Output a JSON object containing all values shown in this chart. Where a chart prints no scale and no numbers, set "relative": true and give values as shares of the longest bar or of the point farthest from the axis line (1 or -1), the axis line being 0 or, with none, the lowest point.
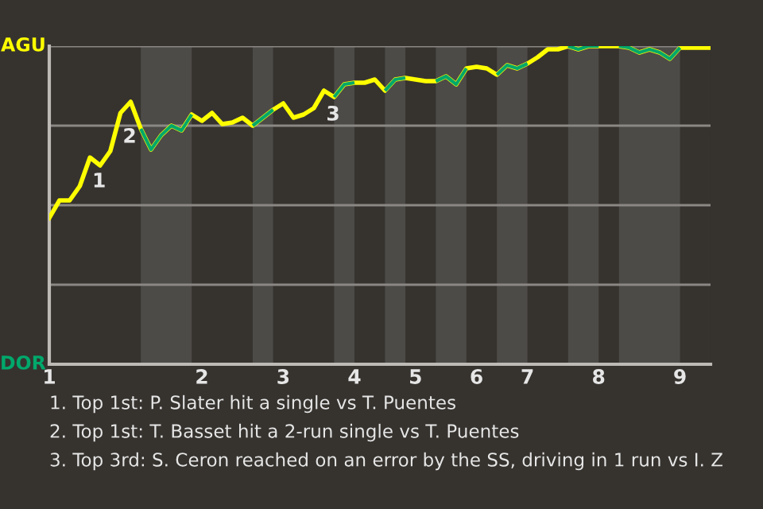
{
  "chart_data": {
    "type": "line",
    "relative": true,
    "categories": [
      "1",
      null,
      null,
      null,
      null,
      null,
      null,
      null,
      null,
      null,
      null,
      null,
      null,
      null,
      null,
      "2",
      null,
      null,
      null,
      null,
      null,
      null,
      null,
      "3",
      null,
      null,
      null,
      null,
      null,
      null,
      "4",
      null,
      null,
      null,
      null,
      null,
      "5",
      null,
      null,
      null,
      null,
      null,
      "6",
      null,
      null,
      null,
      null,
      "7",
      null,
      null,
      null,
      null,
      null,
      null,
      "8",
      null,
      null,
      null,
      null,
      null,
      null,
      null,
      "9",
      null,
      null,
      null
    ],
    "grid": "y",
    "legend": false,
    "marker": "none",
    "line_style": "solid",
    "series": [
      {
        "name": "AGU",
        "color": "#ffff00",
        "values": [
          0.46,
          0.515,
          0.515,
          0.56,
          0.65,
          0.625,
          0.67,
          0.79,
          0.825,
          0.74,
          0.675,
          0.72,
          0.75,
          0.735,
          0.785,
          0.765,
          0.79,
          0.755,
          0.76,
          0.775,
          0.75,
          0.775,
          0.8,
          0.82,
          0.775,
          0.785,
          0.805,
          0.86,
          0.84,
          0.88,
          0.885,
          0.885,
          0.895,
          0.86,
          0.895,
          0.9,
          0.895,
          0.89,
          0.89,
          0.905,
          0.88,
          0.93,
          0.935,
          0.93,
          0.91,
          0.94,
          0.93,
          0.945,
          0.965,
          0.99,
          0.99,
          1,
          0.99,
          1,
          1,
          1,
          1,
          0.995,
          0.98,
          0.99,
          0.98,
          0.96,
          0.995,
          0.995,
          0.995,
          0.995
        ],
        "colors": [
          "#ffff00",
          "#ffff00",
          "#ffff00",
          "#ffff00",
          "#ffff00",
          "#ffff00",
          "#ffff00",
          "#ffff00",
          "#ffff00",
          "#00a86b",
          "#00a86b",
          "#00a86b",
          "#00a86b",
          "#00a86b",
          "#ffff00",
          "#ffff00",
          "#ffff00",
          "#ffff00",
          "#ffff00",
          "#ffff00",
          "#00a86b",
          "#00a86b",
          "#ffff00",
          "#ffff00",
          "#ffff00",
          "#ffff00",
          "#ffff00",
          "#ffff00",
          "#00a86b",
          "#00a86b",
          "#ffff00",
          "#ffff00",
          "#ffff00",
          "#00a86b",
          "#00a86b",
          "#ffff00",
          "#ffff00",
          "#ffff00",
          "#00a86b",
          "#00a86b",
          "#00a86b",
          "#ffff00",
          "#ffff00",
          "#ffff00",
          "#00a86b",
          "#00a86b",
          "#00a86b",
          "#ffff00",
          "#ffff00",
          "#ffff00",
          "#ffff00",
          "#00a86b",
          "#00a86b",
          "#00a86b",
          "#ffff00",
          "#ffff00",
          "#00a86b",
          "#00a86b",
          "#00a86b",
          "#00a86b",
          "#00a86b",
          "#00a86b",
          "#ffff00",
          "#ffff00",
          "#ffff00",
          "#ffff00"
        ]
      }
    ],
    "annotations": [
      "DOR",
      {
        "text": "1",
        "y": 0.65
      },
      {
        "text": "2",
        "y": 0.79
      },
      {
        "text": "3",
        "y": 0.86
      },
      "1. Top 1st: P. Slater hit a single vs T. Puentes",
      "2. Top 1st: T. Basset hit a 2-run single vs T. Puentes",
      "3. Top 3rd: S. Ceron reached on an error by the SS, driving in 1 run vs I. Z"
    ]
  }
}
